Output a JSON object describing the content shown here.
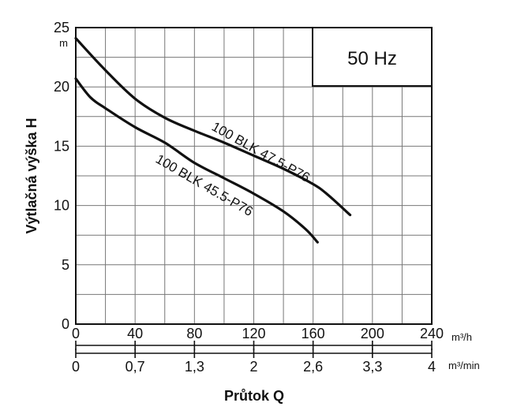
{
  "chart_data": {
    "type": "line",
    "ylabel": "Výtlačná výška H",
    "y_unit": "m",
    "xlabel": "Průtok Q",
    "x_unit_primary": "m³/h",
    "x_unit_secondary": "m³/min",
    "frequency_label": "50 Hz",
    "xlim": [
      0,
      240
    ],
    "ylim": [
      0,
      25
    ],
    "x_ticks": [
      "0",
      "40",
      "80",
      "120",
      "160",
      "200",
      "240"
    ],
    "x_ticks_secondary": [
      "0",
      "0,7",
      "1,3",
      "2",
      "2,6",
      "3,3",
      "4"
    ],
    "y_ticks": [
      "0",
      "5",
      "10",
      "15",
      "20",
      "25"
    ],
    "grid": true,
    "series": [
      {
        "name": "100 BLK 47.5-P76",
        "x": [
          0,
          20,
          40,
          60,
          80,
          100,
          120,
          140,
          160,
          170,
          185
        ],
        "y": [
          24.1,
          21.4,
          19.0,
          17.4,
          16.3,
          15.3,
          14.2,
          13.1,
          11.8,
          10.9,
          9.2
        ]
      },
      {
        "name": "100 BLK 45.5-P76",
        "x": [
          0,
          10,
          20,
          40,
          60,
          80,
          100,
          120,
          140,
          155,
          163
        ],
        "y": [
          20.7,
          19.1,
          18.2,
          16.6,
          15.3,
          13.6,
          12.3,
          11.0,
          9.5,
          8.0,
          6.9
        ]
      }
    ]
  }
}
